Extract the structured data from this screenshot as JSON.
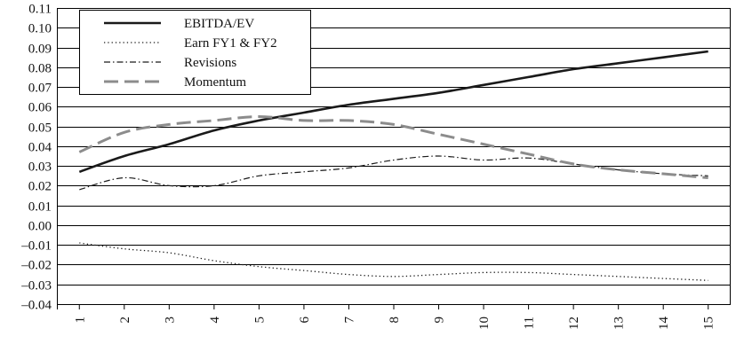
{
  "chart_data": {
    "type": "line",
    "title": "",
    "xlabel": "",
    "ylabel": "",
    "x": [
      1,
      2,
      3,
      4,
      5,
      6,
      7,
      8,
      9,
      10,
      11,
      12,
      13,
      14,
      15
    ],
    "x_tick_labels": [
      "1",
      "2",
      "3",
      "4",
      "5",
      "6",
      "7",
      "8",
      "9",
      "10",
      "11",
      "12",
      "13",
      "14",
      "15"
    ],
    "ylim": [
      -0.04,
      0.11
    ],
    "y_ticks": [
      -0.04,
      -0.03,
      -0.02,
      -0.01,
      0.0,
      0.01,
      0.02,
      0.03,
      0.04,
      0.05,
      0.06,
      0.07,
      0.08,
      0.09,
      0.1,
      0.11
    ],
    "y_tick_labels": [
      "–0.04",
      "–0.03",
      "–0.02",
      "–0.01",
      "0.00",
      "0.01",
      "0.02",
      "0.03",
      "0.04",
      "0.05",
      "0.06",
      "0.07",
      "0.08",
      "0.09",
      "0.10",
      "0.11"
    ],
    "grid": "horizontal",
    "legend_position": "top-left",
    "series": [
      {
        "name": "EBITDA/EV",
        "style": "solid-thick",
        "color": "#1a1a1a",
        "values": [
          0.027,
          0.035,
          0.041,
          0.048,
          0.053,
          0.057,
          0.061,
          0.064,
          0.067,
          0.071,
          0.075,
          0.079,
          0.082,
          0.085,
          0.088
        ]
      },
      {
        "name": "Earn FY1 & FY2",
        "style": "dotted",
        "color": "#1a1a1a",
        "values": [
          -0.009,
          -0.012,
          -0.014,
          -0.018,
          -0.021,
          -0.023,
          -0.025,
          -0.026,
          -0.025,
          -0.024,
          -0.024,
          -0.025,
          -0.026,
          -0.027,
          -0.028
        ]
      },
      {
        "name": "Revisions",
        "style": "dash-dot",
        "color": "#1a1a1a",
        "values": [
          0.018,
          0.024,
          0.02,
          0.02,
          0.025,
          0.027,
          0.029,
          0.033,
          0.035,
          0.033,
          0.034,
          0.031,
          0.028,
          0.026,
          0.025
        ]
      },
      {
        "name": "Momentum",
        "style": "dashed-gray",
        "color": "#8c8c8c",
        "values": [
          0.037,
          0.047,
          0.051,
          0.053,
          0.055,
          0.053,
          0.053,
          0.051,
          0.046,
          0.041,
          0.036,
          0.031,
          0.028,
          0.026,
          0.024
        ]
      }
    ]
  }
}
